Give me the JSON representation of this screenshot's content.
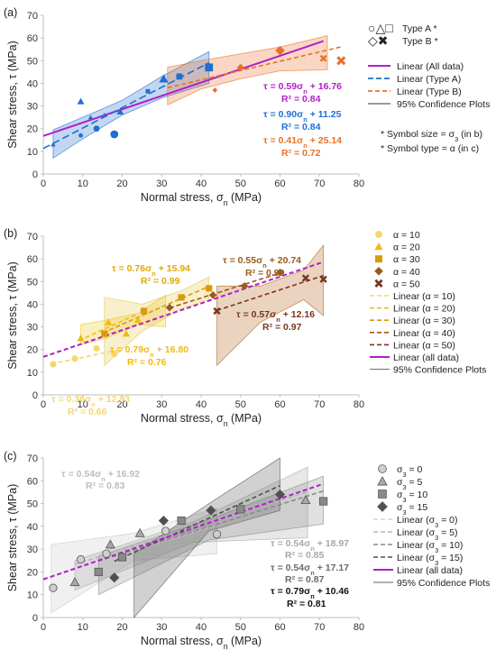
{
  "chart_data": [
    {
      "panel_label": "(a)",
      "type": "scatter",
      "xlabel": "Normal stress, σn (MPa)",
      "ylabel": "Shear stress, τ (MPa)",
      "xlim": [
        0,
        80
      ],
      "ylim": [
        0,
        70
      ],
      "xticks": [
        "0",
        "10",
        "20",
        "30",
        "40",
        "50",
        "60",
        "70",
        "80"
      ],
      "yticks": [
        "0",
        "10",
        "20",
        "30",
        "40",
        "50",
        "60",
        "70"
      ],
      "colors": {
        "all": "#b020c8",
        "a": "#1f6fd0",
        "b": "#e8702a",
        "ci": "#7a7a7a"
      },
      "series": [
        {
          "group": "Type A",
          "color": "#1f6fd0",
          "points": [
            {
              "x": 2.5,
              "y": 13,
              "marker": "triangle",
              "size": "small"
            },
            {
              "x": 9.5,
              "y": 17,
              "marker": "circle",
              "size": "small"
            },
            {
              "x": 12,
              "y": 25,
              "marker": "triangle",
              "size": "small"
            },
            {
              "x": 13.5,
              "y": 20,
              "marker": "circle",
              "size": "medium"
            },
            {
              "x": 15.5,
              "y": 26,
              "marker": "triangle",
              "size": "small"
            },
            {
              "x": 18,
              "y": 17.5,
              "marker": "circle",
              "size": "large"
            },
            {
              "x": 19.5,
              "y": 27.5,
              "marker": "triangle",
              "size": "medium"
            },
            {
              "x": 26.5,
              "y": 36.5,
              "marker": "square",
              "size": "small"
            },
            {
              "x": 30.5,
              "y": 42,
              "marker": "triangle",
              "size": "large"
            },
            {
              "x": 34.5,
              "y": 43,
              "marker": "square",
              "size": "medium"
            },
            {
              "x": 42,
              "y": 47,
              "marker": "square",
              "size": "large"
            },
            {
              "x": 9.5,
              "y": 32,
              "marker": "triangle",
              "size": "medium"
            }
          ]
        },
        {
          "group": "Type B",
          "color": "#e8702a",
          "points": [
            {
              "x": 43.5,
              "y": 37,
              "marker": "diamond",
              "size": "small"
            },
            {
              "x": 50,
              "y": 47,
              "marker": "diamond",
              "size": "medium"
            },
            {
              "x": 60,
              "y": 54.5,
              "marker": "diamond",
              "size": "large"
            },
            {
              "x": 71,
              "y": 51,
              "marker": "x",
              "size": "medium"
            },
            {
              "x": 75.5,
              "y": 50,
              "marker": "x",
              "size": "large"
            }
          ]
        }
      ],
      "fits": [
        {
          "name": "Linear (All data)",
          "slope": 0.59,
          "intercept": 16.76,
          "x_range": [
            0,
            71
          ],
          "color": "#b020c8",
          "dash": "solid"
        },
        {
          "name": "Linear (Type A)",
          "slope": 0.9,
          "intercept": 11.25,
          "x_range": [
            0,
            42
          ],
          "color": "#1f6fd0",
          "dash": "long"
        },
        {
          "name": "Linear (Type B)",
          "slope": 0.41,
          "intercept": 25.14,
          "x_range": [
            31.5,
            75.5
          ],
          "color": "#e8702a",
          "dash": "medium"
        }
      ],
      "bands": [
        {
          "color": "#1f6fd0",
          "x": [
            2.5,
            10,
            20,
            30,
            42
          ],
          "lower": [
            7,
            15.5,
            26,
            33.5,
            40
          ],
          "upper": [
            19.5,
            25,
            32.5,
            43,
            54
          ]
        },
        {
          "color": "#e8702a",
          "x": [
            31.5,
            40,
            50,
            60,
            72
          ],
          "lower": [
            30.5,
            37.5,
            42,
            45.5,
            46
          ],
          "upper": [
            47,
            50,
            53,
            56,
            61
          ]
        }
      ],
      "legend": {
        "markers_a": "○△□",
        "markers_a_label": "Type A *",
        "markers_b": "◇✖",
        "markers_b_label": "Type B *",
        "items": [
          "Linear (All data)",
          "Linear (Type A)",
          "Linear (Type B)",
          "95% Confidence Plots"
        ],
        "notes": [
          "* Symbol size = σ3 (in b)",
          "* Symbol type = α (in c)"
        ]
      },
      "annotations": [
        {
          "text": "τ = 0.59σn + 16.76",
          "color": "#b020c8"
        },
        {
          "text": "R² = 0.84",
          "color": "#b020c8"
        },
        {
          "text": "τ = 0.90σn + 11.25",
          "color": "#1f6fd0"
        },
        {
          "text": "R² = 0.84",
          "color": "#1f6fd0"
        },
        {
          "text": "τ = 0.41σn + 25.14",
          "color": "#e8702a"
        },
        {
          "text": "R² = 0.72",
          "color": "#e8702a"
        }
      ]
    },
    {
      "panel_label": "(b)",
      "type": "scatter",
      "xlabel": "Normal stress, σn (MPa)",
      "ylabel": "Shear stress, τ (MPa)",
      "xlim": [
        0,
        80
      ],
      "ylim": [
        0,
        70
      ],
      "xticks": [
        "0",
        "10",
        "20",
        "30",
        "40",
        "50",
        "60",
        "70",
        "80"
      ],
      "yticks": [
        "0",
        "10",
        "20",
        "30",
        "40",
        "50",
        "60",
        "70"
      ],
      "series": [
        {
          "name": "α = 10",
          "marker": "circle",
          "color": "#f5d76e",
          "points": [
            [
              2.5,
              13.5
            ],
            [
              8,
              16
            ],
            [
              13.5,
              20.5
            ],
            [
              18,
              18
            ]
          ]
        },
        {
          "name": "α = 20",
          "marker": "triangle",
          "color": "#f0bb10",
          "points": [
            [
              9.5,
              25
            ],
            [
              16.5,
              32
            ],
            [
              21,
              27
            ],
            [
              24,
              33
            ]
          ]
        },
        {
          "name": "α = 30",
          "marker": "square",
          "color": "#d99a0c",
          "points": [
            [
              15.5,
              27
            ],
            [
              25.5,
              37
            ],
            [
              35,
              43
            ],
            [
              42,
              47
            ]
          ]
        },
        {
          "name": "α = 40",
          "marker": "diamond",
          "color": "#9a5a1a",
          "points": [
            [
              32,
              38.5
            ],
            [
              43,
              44
            ],
            [
              51,
              48
            ],
            [
              60,
              54
            ]
          ]
        },
        {
          "name": "α = 50",
          "marker": "x",
          "color": "#7a3520",
          "points": [
            [
              44,
              37
            ],
            [
              66.5,
              51.5
            ],
            [
              71,
              51
            ]
          ]
        }
      ],
      "fits": [
        {
          "name": "Linear (α = 10)",
          "slope": 0.36,
          "intercept": 12.93,
          "x_range": [
            2,
            19
          ],
          "color": "#f5d76e"
        },
        {
          "name": "Linear (α = 20)",
          "slope": 0.79,
          "intercept": 16.8,
          "x_range": [
            9,
            24
          ],
          "color": "#f0bb10"
        },
        {
          "name": "Linear (α = 30)",
          "slope": 0.76,
          "intercept": 15.94,
          "x_range": [
            15,
            42
          ],
          "color": "#d99a0c"
        },
        {
          "name": "Linear (α = 40)",
          "slope": 0.55,
          "intercept": 20.74,
          "x_range": [
            32,
            60
          ],
          "color": "#9a5a1a"
        },
        {
          "name": "Linear (α = 50)",
          "slope": 0.57,
          "intercept": 12.16,
          "x_range": [
            44,
            71
          ],
          "color": "#7a3520"
        },
        {
          "name": "Linear (all data)",
          "slope": 0.59,
          "intercept": 16.76,
          "x_range": [
            0,
            71
          ],
          "color": "#b020c8"
        }
      ],
      "bands": [
        {
          "color": "#f0c419",
          "x": [
            9.5,
            16,
            24,
            31
          ],
          "lower": [
            22,
            25,
            31,
            30
          ],
          "upper": [
            31,
            33,
            36,
            44
          ]
        },
        {
          "color": "#e6c74a",
          "x": [
            15.5,
            25,
            35,
            42
          ],
          "lower": [
            13,
            28,
            38,
            42
          ],
          "upper": [
            43,
            40,
            46,
            52
          ]
        },
        {
          "color": "#b5651d",
          "x": [
            44,
            55,
            66,
            71
          ],
          "lower": [
            13,
            32,
            42,
            35
          ],
          "upper": [
            48,
            48,
            55,
            66
          ]
        }
      ],
      "legend": [
        "α = 10",
        "α = 20",
        "α = 30",
        "α = 40",
        "α = 50",
        "Linear (α = 10)",
        "Linear (α = 20)",
        "Linear (α = 30)",
        "Linear (α = 40)",
        "Linear (α = 50)",
        "Linear (all data)",
        "95% Confidence Plots"
      ],
      "annotations": [
        {
          "text": "τ = 0.76σn + 15.94",
          "color": "#e0a800"
        },
        {
          "text": "R² = 0.99",
          "color": "#e0a800"
        },
        {
          "text": "τ = 0.55σn + 20.74",
          "color": "#9a5a1a"
        },
        {
          "text": "R² = 0.99",
          "color": "#9a5a1a"
        },
        {
          "text": "τ = 0.57σn + 12.16",
          "color": "#7a3520"
        },
        {
          "text": "R² = 0.97",
          "color": "#7a3520"
        },
        {
          "text": "τ = 0.79σn + 16.80",
          "color": "#f0bb10"
        },
        {
          "text": "R² = 0.76",
          "color": "#f0bb10"
        },
        {
          "text": "τ = 0.36σn + 12.93",
          "color": "#f5d76e"
        },
        {
          "text": "R² = 0.66",
          "color": "#f5d76e"
        }
      ]
    },
    {
      "panel_label": "(c)",
      "type": "scatter",
      "xlabel": "Normal stress, σn (MPa)",
      "ylabel": "Shear stress, τ (MPa)",
      "xlim": [
        0,
        80
      ],
      "ylim": [
        0,
        70
      ],
      "xticks": [
        "0",
        "10",
        "20",
        "30",
        "40",
        "50",
        "60",
        "70",
        "80"
      ],
      "yticks": [
        "0",
        "10",
        "20",
        "30",
        "40",
        "50",
        "60",
        "70"
      ],
      "series": [
        {
          "name": "σ3 = 0",
          "marker": "circle",
          "color": "#cfcfcf",
          "points": [
            [
              2.5,
              13
            ],
            [
              9.5,
              25.5
            ],
            [
              16,
              28
            ],
            [
              31,
              38
            ],
            [
              44,
              36.5
            ]
          ]
        },
        {
          "name": "σ3 = 5",
          "marker": "triangle",
          "color": "#a8a8a8",
          "points": [
            [
              8,
              15.5
            ],
            [
              17,
              32
            ],
            [
              24.5,
              37
            ],
            [
              66.5,
              51.5
            ]
          ]
        },
        {
          "name": "σ3 = 10",
          "marker": "square",
          "color": "#8a8a8a",
          "points": [
            [
              14,
              20
            ],
            [
              20,
              26.5
            ],
            [
              35,
              42.5
            ],
            [
              50,
              47.5
            ],
            [
              71,
              51
            ]
          ]
        },
        {
          "name": "σ3 = 15",
          "marker": "diamond",
          "color": "#505050",
          "points": [
            [
              18,
              17.5
            ],
            [
              30.5,
              42.5
            ],
            [
              42.5,
              47
            ],
            [
              60,
              54
            ]
          ]
        }
      ],
      "fits": [
        {
          "name": "Linear (σ3 = 0)",
          "slope": 0.54,
          "intercept": 16.92,
          "x_range": [
            2,
            44
          ],
          "color": "#d6d6d6"
        },
        {
          "name": "Linear (σ3 = 5)",
          "slope": 0.54,
          "intercept": 18.97,
          "x_range": [
            8,
            67
          ],
          "color": "#b5b5b5"
        },
        {
          "name": "Linear (σ3 = 10)",
          "slope": 0.54,
          "intercept": 17.17,
          "x_range": [
            14,
            71
          ],
          "color": "#8a8a8a"
        },
        {
          "name": "Linear (σ3 = 15)",
          "slope": 0.79,
          "intercept": 10.46,
          "x_range": [
            18,
            60
          ],
          "color": "#505050"
        },
        {
          "name": "Linear (all data)",
          "slope": 0.59,
          "intercept": 16.76,
          "x_range": [
            0,
            71
          ],
          "color": "#b020c8"
        }
      ],
      "bands": [
        {
          "color": "#c8c8c8",
          "x": [
            2,
            23,
            44
          ],
          "lower": [
            2,
            25,
            28
          ],
          "upper": [
            32,
            37,
            48
          ]
        },
        {
          "color": "#a8a8a8",
          "x": [
            8,
            38,
            67
          ],
          "lower": [
            12,
            33,
            35
          ],
          "upper": [
            25,
            42,
            66
          ]
        },
        {
          "color": "#8e8e8e",
          "x": [
            14,
            42,
            71
          ],
          "lower": [
            10,
            34,
            41
          ],
          "upper": [
            27,
            43,
            62
          ]
        },
        {
          "color": "#5a5a5a",
          "x": [
            23,
            42,
            60
          ],
          "lower": [
            0,
            38,
            47
          ],
          "upper": [
            28,
            50,
            70
          ]
        }
      ],
      "legend": [
        "σ3 = 0",
        "σ3 = 5",
        "σ3 = 10",
        "σ3 = 15",
        "Linear (σ3 = 0)",
        "Linear (σ3 = 5)",
        "Linear (σ3 = 10)",
        "Linear (σ3 = 15)",
        "Linear (all data)",
        "95% Confidence Plots"
      ],
      "annotations": [
        {
          "text": "τ = 0.54σn + 16.92",
          "color": "#bcbcbc"
        },
        {
          "text": "R² = 0.83",
          "color": "#bcbcbc"
        },
        {
          "text": "τ = 0.54σn + 18.97",
          "color": "#a8a8a8"
        },
        {
          "text": "R² = 0.85",
          "color": "#a8a8a8"
        },
        {
          "text": "τ = 0.54σn + 17.17",
          "color": "#6a6a6a"
        },
        {
          "text": "R² = 0.87",
          "color": "#6a6a6a"
        },
        {
          "text": "τ = 0.79σn + 10.46",
          "color": "#111111"
        },
        {
          "text": "R² = 0.81",
          "color": "#111111"
        }
      ]
    }
  ]
}
